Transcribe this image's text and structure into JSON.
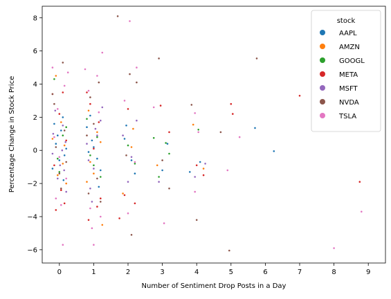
{
  "chart_data": {
    "type": "scatter",
    "title": "",
    "xlabel": "Number of Sentiment Drop Posts in a Day",
    "ylabel": "Percentage Change in Stock Price",
    "xlim": [
      -0.5,
      9.5
    ],
    "ylim": [
      -6.8,
      8.7
    ],
    "xticks": [
      0,
      1,
      2,
      3,
      4,
      5,
      6,
      7,
      8,
      9
    ],
    "yticks": [
      -6,
      -4,
      -2,
      0,
      2,
      4,
      6,
      8
    ],
    "grid": false,
    "jitter": true,
    "legend": {
      "title": "stock",
      "position": "top-right",
      "entries": [
        {
          "name": "AAPL",
          "color": "#1f77b4"
        },
        {
          "name": "AMZN",
          "color": "#ff7f0e"
        },
        {
          "name": "GOOGL",
          "color": "#2ca02c"
        },
        {
          "name": "META",
          "color": "#d62728"
        },
        {
          "name": "MSFT",
          "color": "#9467bd"
        },
        {
          "name": "NVDA",
          "color": "#8c564b"
        },
        {
          "name": "TSLA",
          "color": "#e377c2"
        }
      ]
    },
    "series": [
      {
        "name": "AAPL",
        "color": "#1f77b4",
        "points": [
          [
            0.05,
            1.2
          ],
          [
            -0.1,
            0.4
          ],
          [
            0.15,
            -0.3
          ],
          [
            -0.2,
            -1.1
          ],
          [
            0.1,
            2.0
          ],
          [
            0.0,
            -0.6
          ],
          [
            -0.05,
            0.9
          ],
          [
            0.2,
            0.1
          ],
          [
            -0.15,
            1.6
          ],
          [
            0.12,
            -1.8
          ],
          [
            0.95,
            0.6
          ],
          [
            1.1,
            -0.5
          ],
          [
            0.8,
            1.4
          ],
          [
            1.2,
            -1.2
          ],
          [
            1.0,
            0.2
          ],
          [
            0.9,
            2.1
          ],
          [
            1.15,
            -2.2
          ],
          [
            0.85,
            -0.1
          ],
          [
            1.9,
            0.7
          ],
          [
            2.1,
            -0.6
          ],
          [
            1.95,
            1.5
          ],
          [
            2.2,
            -1.4
          ],
          [
            3.0,
            -1.2
          ],
          [
            3.15,
            0.4
          ],
          [
            4.1,
            -0.7
          ],
          [
            3.8,
            -1.3
          ],
          [
            5.7,
            1.35
          ],
          [
            6.25,
            -0.05
          ]
        ]
      },
      {
        "name": "AMZN",
        "color": "#ff7f0e",
        "points": [
          [
            -0.1,
            4.5
          ],
          [
            0.1,
            -0.8
          ],
          [
            -0.2,
            0.7
          ],
          [
            0.2,
            -2.0
          ],
          [
            0.05,
            1.7
          ],
          [
            -0.05,
            -1.5
          ],
          [
            0.15,
            0.3
          ],
          [
            0.9,
            -0.7
          ],
          [
            1.1,
            1.1
          ],
          [
            0.8,
            -1.9
          ],
          [
            1.2,
            0.5
          ],
          [
            1.0,
            -1.4
          ],
          [
            1.25,
            -4.5
          ],
          [
            0.85,
            2.4
          ],
          [
            2.1,
            0.2
          ],
          [
            1.85,
            -2.6
          ],
          [
            2.15,
            1.3
          ],
          [
            2.85,
            -0.9
          ],
          [
            3.9,
            1.55
          ],
          [
            4.2,
            -1.1
          ]
        ]
      },
      {
        "name": "GOOGL",
        "color": "#2ca02c",
        "points": [
          [
            -0.15,
            4.3
          ],
          [
            0.1,
            0.9
          ],
          [
            -0.05,
            -0.5
          ],
          [
            0.2,
            1.4
          ],
          [
            0.0,
            -1.3
          ],
          [
            0.9,
            -0.3
          ],
          [
            1.1,
            0.8
          ],
          [
            1.2,
            -1.6
          ],
          [
            0.8,
            1.9
          ],
          [
            1.0,
            -0.9
          ],
          [
            2.0,
            0.3
          ],
          [
            2.2,
            -0.8
          ],
          [
            2.75,
            0.75
          ],
          [
            3.1,
            0.45
          ],
          [
            2.9,
            -1.6
          ],
          [
            4.05,
            1.25
          ],
          [
            3.2,
            -0.2
          ]
        ]
      },
      {
        "name": "META",
        "color": "#d62728",
        "points": [
          [
            -0.2,
            3.4
          ],
          [
            0.1,
            3.5
          ],
          [
            -0.1,
            -3.6
          ],
          [
            0.15,
            -3.2
          ],
          [
            0.0,
            2.2
          ],
          [
            -0.15,
            -0.9
          ],
          [
            0.2,
            0.6
          ],
          [
            0.05,
            -2.4
          ],
          [
            0.8,
            3.5
          ],
          [
            1.1,
            -3.4
          ],
          [
            0.9,
            2.8
          ],
          [
            1.2,
            -2.9
          ],
          [
            1.0,
            0.1
          ],
          [
            0.85,
            -4.2
          ],
          [
            1.15,
            1.7
          ],
          [
            1.75,
            -4.1
          ],
          [
            2.0,
            2.5
          ],
          [
            2.2,
            -3.2
          ],
          [
            1.9,
            -2.7
          ],
          [
            2.95,
            2.7
          ],
          [
            3.2,
            1.1
          ],
          [
            4.0,
            -0.9
          ],
          [
            4.2,
            -1.5
          ],
          [
            5.0,
            2.8
          ],
          [
            5.05,
            2.2
          ],
          [
            7.0,
            3.3
          ],
          [
            8.75,
            -1.9
          ]
        ]
      },
      {
        "name": "MSFT",
        "color": "#9467bd",
        "points": [
          [
            -0.2,
            -0.2
          ],
          [
            0.1,
            1.5
          ],
          [
            -0.05,
            -1.7
          ],
          [
            0.18,
            0.5
          ],
          [
            0.02,
            -0.9
          ],
          [
            -0.12,
            2.4
          ],
          [
            0.2,
            -2.5
          ],
          [
            0.08,
            0.0
          ],
          [
            -0.18,
            1.0
          ],
          [
            0.14,
            -1.2
          ],
          [
            0.8,
            0.4
          ],
          [
            1.0,
            -1.1
          ],
          [
            1.2,
            1.8
          ],
          [
            0.9,
            -2.3
          ],
          [
            1.1,
            0.9
          ],
          [
            0.85,
            -0.6
          ],
          [
            1.25,
            2.6
          ],
          [
            0.95,
            -3.1
          ],
          [
            1.05,
            1.3
          ],
          [
            1.85,
            0.9
          ],
          [
            2.0,
            -1.9
          ],
          [
            2.25,
            1.8
          ],
          [
            2.1,
            -0.4
          ],
          [
            2.9,
            -1.9
          ],
          [
            4.25,
            -0.8
          ],
          [
            3.95,
            -1.6
          ]
        ]
      },
      {
        "name": "NVDA",
        "color": "#8c564b",
        "points": [
          [
            0.1,
            5.3
          ],
          [
            -0.2,
            3.4
          ],
          [
            0.05,
            -2.3
          ],
          [
            -0.1,
            0.2
          ],
          [
            0.15,
            1.2
          ],
          [
            0.0,
            -1.4
          ],
          [
            -0.15,
            2.8
          ],
          [
            0.2,
            -0.7
          ],
          [
            0.9,
            3.2
          ],
          [
            1.1,
            -1.7
          ],
          [
            0.8,
            0.9
          ],
          [
            1.2,
            -3.1
          ],
          [
            1.0,
            1.6
          ],
          [
            0.85,
            -2.6
          ],
          [
            1.15,
            4.1
          ],
          [
            1.7,
            8.1
          ],
          [
            2.05,
            4.6
          ],
          [
            2.25,
            4.1
          ],
          [
            2.1,
            -5.1
          ],
          [
            1.95,
            -0.3
          ],
          [
            2.9,
            5.55
          ],
          [
            3.0,
            -0.6
          ],
          [
            3.2,
            -2.3
          ],
          [
            4.0,
            -4.2
          ],
          [
            3.85,
            2.75
          ],
          [
            4.7,
            1.1
          ],
          [
            4.95,
            -6.05
          ],
          [
            5.75,
            5.55
          ]
        ]
      },
      {
        "name": "TSLA",
        "color": "#e377c2",
        "points": [
          [
            0.25,
            4.7
          ],
          [
            -0.2,
            5.0
          ],
          [
            0.1,
            -5.7
          ],
          [
            -0.1,
            -2.9
          ],
          [
            0.15,
            3.9
          ],
          [
            0.0,
            -0.4
          ],
          [
            -0.05,
            2.5
          ],
          [
            0.2,
            -1.7
          ],
          [
            -0.15,
            0.8
          ],
          [
            0.05,
            -3.3
          ],
          [
            0.75,
            4.9
          ],
          [
            1.25,
            5.9
          ],
          [
            0.95,
            -4.7
          ],
          [
            1.0,
            -5.7
          ],
          [
            1.2,
            -4.0
          ],
          [
            0.85,
            3.6
          ],
          [
            1.1,
            4.5
          ],
          [
            0.9,
            -3.5
          ],
          [
            1.15,
            2.3
          ],
          [
            2.0,
            -3.8
          ],
          [
            2.25,
            5.0
          ],
          [
            1.9,
            3.0
          ],
          [
            2.2,
            -0.7
          ],
          [
            2.05,
            7.8
          ],
          [
            2.75,
            2.6
          ],
          [
            3.05,
            -4.4
          ],
          [
            3.95,
            -2.5
          ],
          [
            3.95,
            2.25
          ],
          [
            4.05,
            1.1
          ],
          [
            4.9,
            -1.2
          ],
          [
            5.25,
            0.8
          ],
          [
            8.0,
            -5.9
          ],
          [
            8.8,
            -3.7
          ]
        ]
      }
    ]
  }
}
